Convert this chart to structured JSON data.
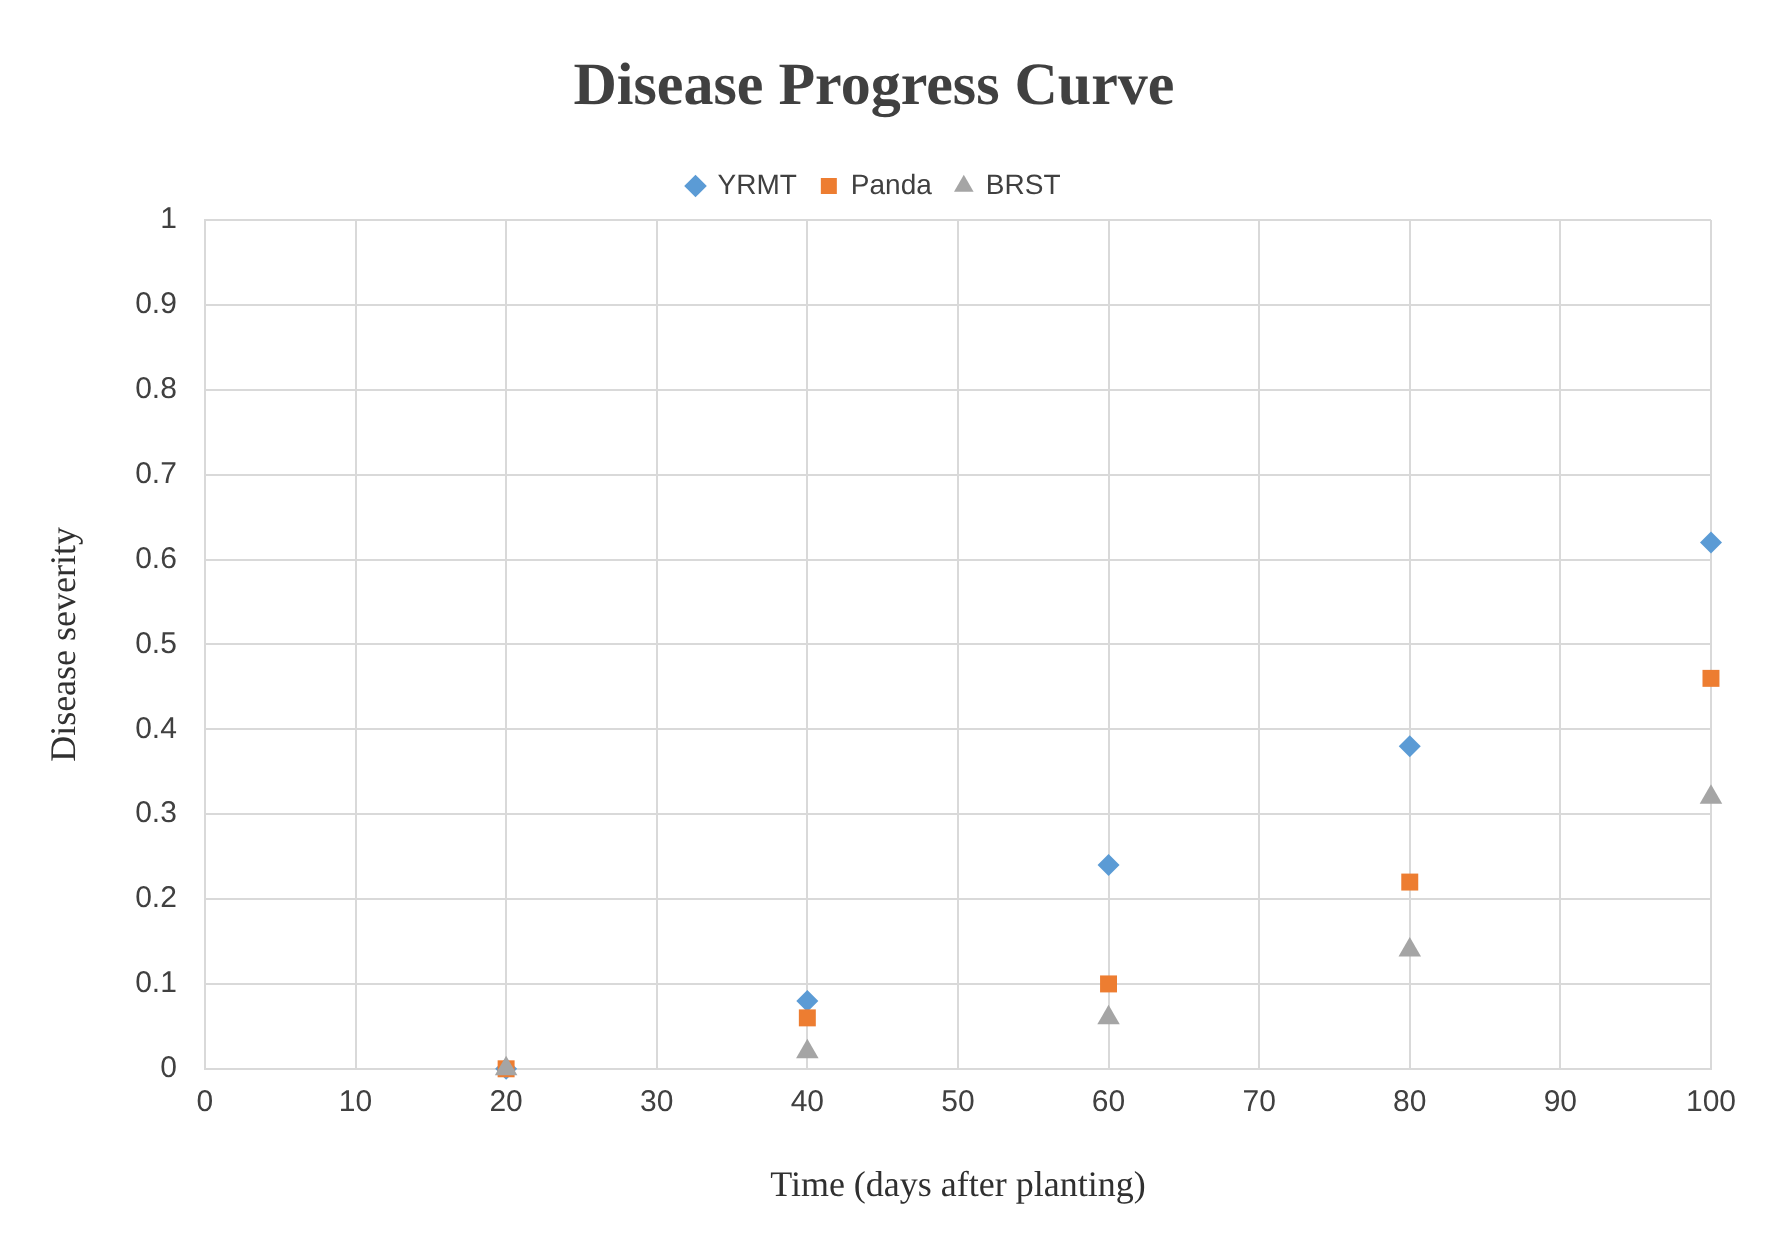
{
  "chart_data": {
    "type": "scatter",
    "title": "Disease Progress Curve",
    "xlabel": "Time (days after planting)",
    "ylabel": "Disease severity",
    "x": [
      20,
      40,
      60,
      80,
      100
    ],
    "series": [
      {
        "name": "YRMT",
        "color": "#5b9bd5",
        "marker": "diamond",
        "values": [
          0,
          0.08,
          0.24,
          0.38,
          0.62
        ]
      },
      {
        "name": "Panda",
        "color": "#ed7d31",
        "marker": "square",
        "values": [
          0,
          0.06,
          0.1,
          0.22,
          0.46
        ]
      },
      {
        "name": "BRST",
        "color": "#a5a5a5",
        "marker": "triangle",
        "values": [
          0,
          0.02,
          0.06,
          0.14,
          0.32
        ]
      }
    ],
    "xlim": [
      0,
      100
    ],
    "xticks": [
      0,
      10,
      20,
      30,
      40,
      50,
      60,
      70,
      80,
      90,
      100
    ],
    "ylim": [
      0,
      1
    ],
    "yticks": [
      0,
      0.1,
      0.2,
      0.3,
      0.4,
      0.5,
      0.6,
      0.7,
      0.8,
      0.9,
      1
    ],
    "grid": true,
    "legend": "top"
  }
}
